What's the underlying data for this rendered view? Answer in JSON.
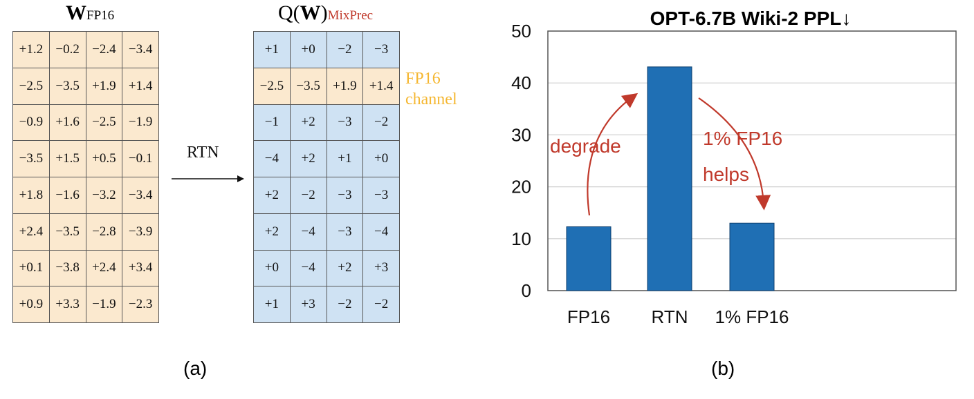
{
  "panel_a": {
    "left_title_main": "W",
    "left_title_sub": "FP16",
    "right_title_prefix": "Q(",
    "right_title_main": "W",
    "right_title_suffix": ")",
    "right_title_sub": "MixPrec",
    "arrow_label": "RTN",
    "fp16_note_line1": "FP16",
    "fp16_note_line2": "channel",
    "fp16_row_index": 1,
    "weights_fp16": [
      [
        "+1.2",
        "−0.2",
        "−2.4",
        "−3.4"
      ],
      [
        "−2.5",
        "−3.5",
        "+1.9",
        "+1.4"
      ],
      [
        "−0.9",
        "+1.6",
        "−2.5",
        "−1.9"
      ],
      [
        "−3.5",
        "+1.5",
        "+0.5",
        "−0.1"
      ],
      [
        "+1.8",
        "−1.6",
        "−3.2",
        "−3.4"
      ],
      [
        "+2.4",
        "−3.5",
        "−2.8",
        "−3.9"
      ],
      [
        "+0.1",
        "−3.8",
        "+2.4",
        "+3.4"
      ],
      [
        "+0.9",
        "+3.3",
        "−1.9",
        "−2.3"
      ]
    ],
    "weights_mixprec": [
      [
        "+1",
        "+0",
        "−2",
        "−3"
      ],
      [
        "−2.5",
        "−3.5",
        "+1.9",
        "+1.4"
      ],
      [
        "−1",
        "+2",
        "−3",
        "−2"
      ],
      [
        "−4",
        "+2",
        "+1",
        "+0"
      ],
      [
        "+2",
        "−2",
        "−3",
        "−3"
      ],
      [
        "+2",
        "−4",
        "−3",
        "−4"
      ],
      [
        "+0",
        "−4",
        "+2",
        "+3"
      ],
      [
        "+1",
        "+3",
        "−2",
        "−2"
      ]
    ],
    "caption": "(a)",
    "colors": {
      "fp16_cell": "#fbe9cf",
      "quant_cell": "#cfe2f3",
      "note": "#f5b731",
      "mixprec": "#c0392b"
    }
  },
  "chart_data": {
    "type": "bar",
    "title": "OPT-6.7B Wiki-2 PPL↓",
    "categories": [
      "FP16",
      "RTN",
      "1% FP16"
    ],
    "values": [
      12.3,
      43.1,
      13.0
    ],
    "ylim": [
      0,
      50
    ],
    "yticks": [
      0,
      10,
      20,
      30,
      40,
      50
    ],
    "xlabel": "",
    "ylabel": "",
    "grid": true,
    "bar_color": "#1f6fb4",
    "annotations": [
      {
        "text": "degrade",
        "color": "#c0392b"
      },
      {
        "text_line1": "1% FP16",
        "text_line2": "helps",
        "color": "#c0392b"
      }
    ]
  },
  "panel_b": {
    "caption": "(b)"
  }
}
